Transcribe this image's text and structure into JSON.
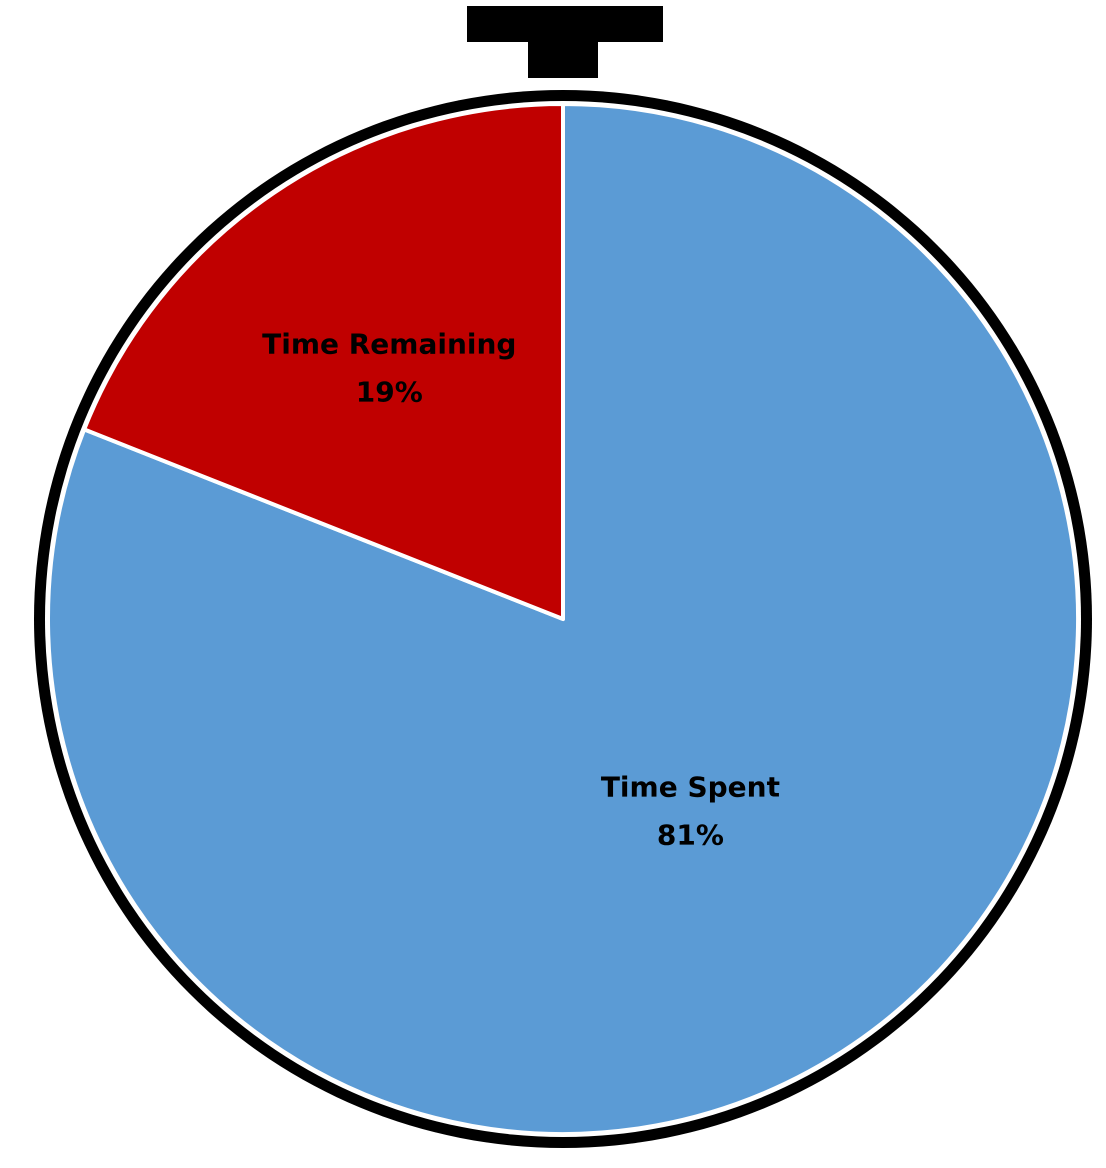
{
  "chart_data": {
    "type": "pie",
    "slices": [
      {
        "label": "Time Spent",
        "value": 81,
        "value_label": "81%",
        "color": "#5B9BD5"
      },
      {
        "label": "Time Remaining",
        "value": 19,
        "value_label": "19%",
        "color": "#C00000"
      }
    ],
    "start_angle_deg": 0,
    "direction": "clockwise",
    "slice_border_color": "#FFFFFF",
    "frame_color": "#000000",
    "legend": "none"
  }
}
